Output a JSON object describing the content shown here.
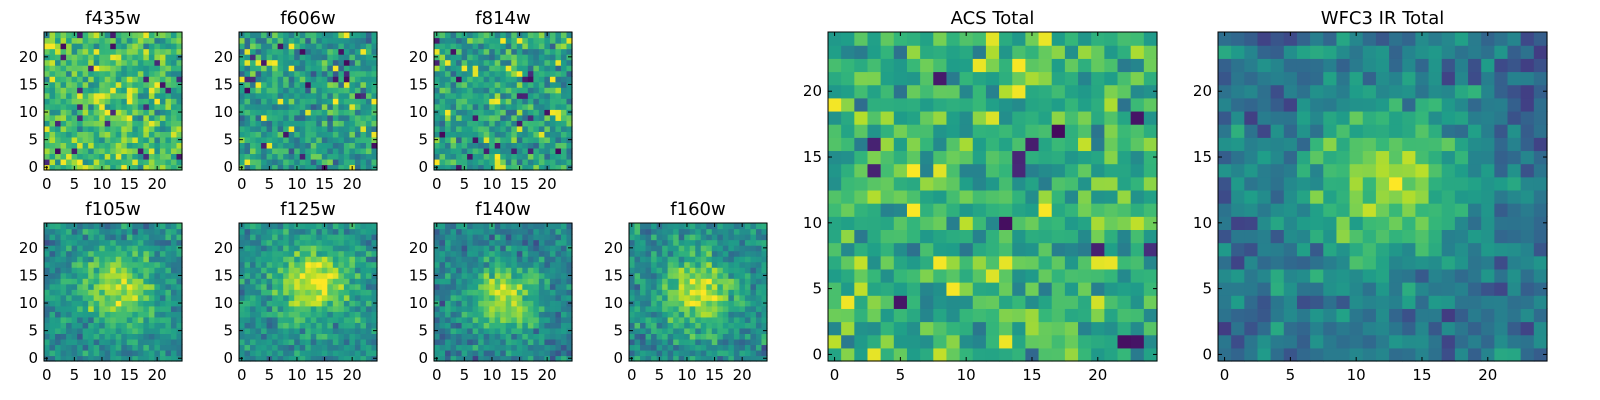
{
  "chart_data": {
    "type": "heatmap",
    "colormap": "viridis",
    "grid": false,
    "colors": {
      "low": "#440154",
      "mid": "#21918c",
      "high": "#fde725",
      "frame": "#000000"
    },
    "panels": [
      {
        "id": "f435w",
        "title": "f435w",
        "xlim": [
          0,
          24
        ],
        "ylim": [
          0,
          24
        ],
        "xticks": [
          "0",
          "5",
          "10",
          "15",
          "20"
        ],
        "yticks": [
          "0",
          "5",
          "10",
          "15",
          "20"
        ],
        "pattern": "noise-bright",
        "mean_level": 0.68
      },
      {
        "id": "f606w",
        "title": "f606w",
        "xlim": [
          0,
          24
        ],
        "ylim": [
          0,
          24
        ],
        "xticks": [
          "0",
          "5",
          "10",
          "15",
          "20"
        ],
        "yticks": [
          "0",
          "5",
          "10",
          "15",
          "20"
        ],
        "pattern": "noise",
        "mean_level": 0.55
      },
      {
        "id": "f814w",
        "title": "f814w",
        "xlim": [
          0,
          24
        ],
        "ylim": [
          0,
          24
        ],
        "xticks": [
          "0",
          "5",
          "10",
          "15",
          "20"
        ],
        "yticks": [
          "0",
          "5",
          "10",
          "15",
          "20"
        ],
        "pattern": "noise",
        "mean_level": 0.58
      },
      {
        "id": "f105w",
        "title": "f105w",
        "xlim": [
          0,
          24
        ],
        "ylim": [
          0,
          24
        ],
        "xticks": [
          "0",
          "5",
          "10",
          "15",
          "20"
        ],
        "yticks": [
          "0",
          "5",
          "10",
          "15",
          "20"
        ],
        "pattern": "central-source",
        "peak_x": 13,
        "peak_y": 13,
        "mean_level": 0.6
      },
      {
        "id": "f125w",
        "title": "f125w",
        "xlim": [
          0,
          24
        ],
        "ylim": [
          0,
          24
        ],
        "xticks": [
          "0",
          "5",
          "10",
          "15",
          "20"
        ],
        "yticks": [
          "0",
          "5",
          "10",
          "15",
          "20"
        ],
        "pattern": "central-source",
        "peak_x": 13,
        "peak_y": 14,
        "mean_level": 0.62
      },
      {
        "id": "f140w",
        "title": "f140w",
        "xlim": [
          0,
          24
        ],
        "ylim": [
          0,
          24
        ],
        "xticks": [
          "0",
          "5",
          "10",
          "15",
          "20"
        ],
        "yticks": [
          "0",
          "5",
          "10",
          "15",
          "20"
        ],
        "pattern": "central-source",
        "peak_x": 12,
        "peak_y": 11,
        "mean_level": 0.55
      },
      {
        "id": "f160w",
        "title": "f160w",
        "xlim": [
          0,
          24
        ],
        "ylim": [
          0,
          24
        ],
        "xticks": [
          "0",
          "5",
          "10",
          "15",
          "20"
        ],
        "yticks": [
          "0",
          "5",
          "10",
          "15",
          "20"
        ],
        "pattern": "central-source",
        "peak_x": 12,
        "peak_y": 12,
        "mean_level": 0.6
      },
      {
        "id": "acs",
        "title": "ACS Total",
        "xlim": [
          0,
          24
        ],
        "ylim": [
          0,
          24
        ],
        "xticks": [
          "0",
          "5",
          "10",
          "15",
          "20"
        ],
        "yticks": [
          "0",
          "5",
          "10",
          "15",
          "20"
        ],
        "pattern": "noise-bright",
        "mean_level": 0.64
      },
      {
        "id": "wfc3",
        "title": "WFC3 IR Total",
        "xlim": [
          0,
          24
        ],
        "ylim": [
          0,
          24
        ],
        "xticks": [
          "0",
          "5",
          "10",
          "15",
          "20"
        ],
        "yticks": [
          "0",
          "5",
          "10",
          "15",
          "20"
        ],
        "pattern": "central-source",
        "peak_x": 12,
        "peak_y": 13,
        "mean_level": 0.5
      }
    ]
  }
}
